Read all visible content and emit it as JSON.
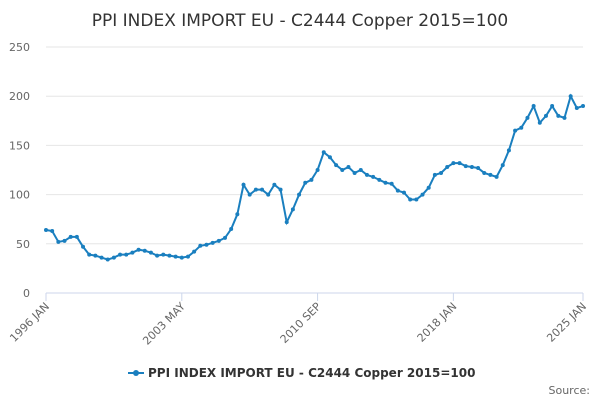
{
  "chart_data": {
    "type": "line",
    "title": "PPI INDEX IMPORT EU - C2444 Copper 2015=100",
    "source": "Source:",
    "categories": [
      "1996 JAN",
      null,
      null,
      null,
      null,
      null,
      null,
      null,
      null,
      null,
      null,
      null,
      null,
      null,
      null,
      null,
      null,
      null,
      null,
      null,
      null,
      null,
      "2003 MAY",
      null,
      null,
      null,
      null,
      null,
      null,
      null,
      null,
      null,
      null,
      null,
      null,
      null,
      null,
      null,
      null,
      null,
      null,
      null,
      null,
      null,
      "2010 SEP",
      null,
      null,
      null,
      null,
      null,
      null,
      null,
      null,
      null,
      null,
      null,
      null,
      null,
      null,
      null,
      null,
      null,
      null,
      null,
      null,
      null,
      "2018 JAN",
      null,
      null,
      null,
      null,
      null,
      null,
      null,
      null,
      null,
      null,
      null,
      null,
      null,
      null,
      null,
      null,
      null,
      null,
      null,
      null,
      "2025 JAN"
    ],
    "series": [
      {
        "name": "PPI INDEX IMPORT EU - C2444 Copper 2015=100",
        "color": "#1a7fbf",
        "values": [
          64,
          63,
          52,
          53,
          57,
          57,
          47,
          39,
          38,
          36,
          34,
          36,
          39,
          39,
          41,
          44,
          43,
          41,
          38,
          39,
          38,
          37,
          36,
          37,
          42,
          48,
          49,
          51,
          53,
          56,
          65,
          80,
          110,
          100,
          105,
          105,
          100,
          110,
          105,
          72,
          85,
          100,
          112,
          115,
          125,
          143,
          138,
          130,
          125,
          128,
          122,
          125,
          120,
          118,
          115,
          112,
          111,
          104,
          102,
          95,
          95,
          100,
          107,
          120,
          122,
          128,
          132,
          132,
          129,
          128,
          127,
          122,
          120,
          118,
          130,
          145,
          165,
          168,
          178,
          190,
          173,
          180,
          190,
          180,
          178,
          200,
          188,
          190
        ]
      }
    ],
    "ylim": [
      0,
      250
    ],
    "yticks": [
      0,
      50,
      100,
      150,
      200,
      250
    ],
    "grid": true
  }
}
